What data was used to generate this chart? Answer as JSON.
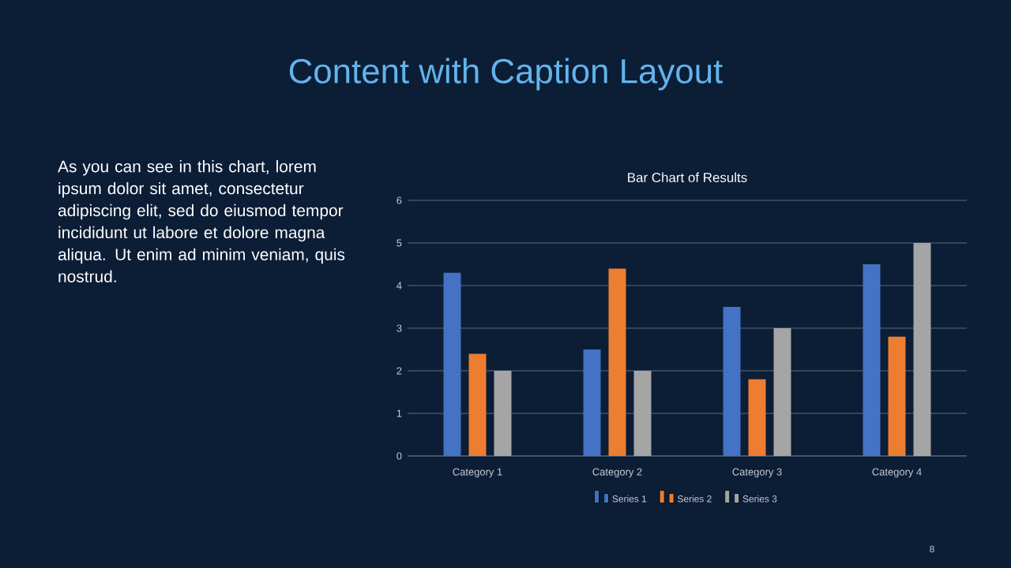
{
  "chart_data": {
    "type": "bar",
    "title": "Content with Caption Layout",
    "subtitle": "Bar Chart of Results",
    "categories": [
      "Category 1",
      "Category 2",
      "Category 3",
      "Category 4"
    ],
    "series": [
      {
        "name": "Series 1",
        "color": "#4472c4",
        "values": [
          4.3,
          2.5,
          3.5,
          4.5
        ]
      },
      {
        "name": "Series 2",
        "color": "#ed7d31",
        "values": [
          2.4,
          4.4,
          1.8,
          2.8
        ]
      },
      {
        "name": "Series 3",
        "color": "#a5a5a5",
        "values": [
          2,
          2,
          3,
          5
        ]
      }
    ],
    "ylim": [
      0,
      6
    ],
    "yticks": [
      0,
      1,
      2,
      3,
      4,
      5,
      6
    ],
    "grid": "y",
    "legend": "bottom",
    "annotations": [
      "As you can see in this chart, lorem ipsum dolor sit amet, consectetur adipiscing elit, sed do eiusmod tempor incididunt ut labore et dolore magna aliqua. Ut enim ad minim veniam, quis nostrud.",
      "8"
    ]
  }
}
